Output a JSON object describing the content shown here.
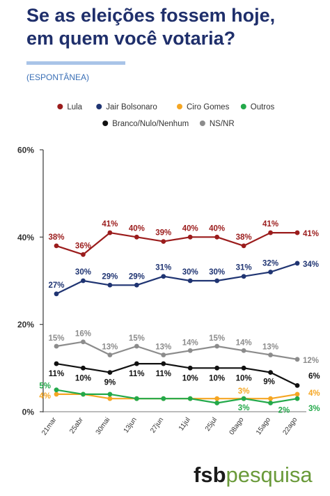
{
  "title": {
    "line1": "Se as eleições fossem hoje,",
    "line2": "em quem você votaria?"
  },
  "subtitle": "(ESPONTÂNEA)",
  "brand": {
    "part1": "fsb",
    "part2": "pesquisa"
  },
  "chart_data": {
    "type": "line",
    "title": "Se as eleições fossem hoje, em quem você votaria?",
    "subtitle": "(ESPONTÂNEA)",
    "xlabel": "",
    "ylabel": "",
    "ylim": [
      0,
      60
    ],
    "yticks": [
      "0%",
      "20%",
      "40%",
      "60%"
    ],
    "grid": false,
    "legend_position": "top",
    "x": [
      "21mar",
      "25abr",
      "30mai",
      "13jun",
      "27jun",
      "11jul",
      "25jul",
      "08ago",
      "15ago",
      "22ago"
    ],
    "series": [
      {
        "name": "Lula",
        "color": "#9b1c1c",
        "values": [
          38,
          36,
          41,
          40,
          39,
          40,
          40,
          38,
          41,
          41
        ],
        "labels": [
          "38%",
          "36%",
          "41%",
          "40%",
          "39%",
          "40%",
          "40%",
          "38%",
          "41%",
          "41%"
        ]
      },
      {
        "name": "Jair Bolsonaro",
        "color": "#1f3472",
        "values": [
          27,
          30,
          29,
          29,
          31,
          30,
          30,
          31,
          32,
          34
        ],
        "labels": [
          "27%",
          "30%",
          "29%",
          "29%",
          "31%",
          "30%",
          "30%",
          "31%",
          "32%",
          "34%"
        ]
      },
      {
        "name": "Ciro Gomes",
        "color": "#f5a623",
        "values": [
          4,
          4,
          3,
          3,
          3,
          3,
          3,
          3,
          3,
          4
        ],
        "labels": [
          "4%",
          "",
          "",
          "",
          "",
          "",
          "",
          "3%",
          "",
          "4%"
        ]
      },
      {
        "name": "Outros",
        "color": "#23a94a",
        "values": [
          5,
          4,
          4,
          3,
          3,
          3,
          2,
          3,
          2,
          3
        ],
        "labels": [
          "5%",
          "",
          "",
          "",
          "",
          "",
          "",
          "3%",
          "2%",
          "3%"
        ]
      },
      {
        "name": "Branco/Nulo/Nenhum",
        "color": "#111111",
        "values": [
          11,
          10,
          9,
          11,
          11,
          10,
          10,
          10,
          9,
          6
        ],
        "labels": [
          "11%",
          "10%",
          "9%",
          "11%",
          "11%",
          "10%",
          "10%",
          "10%",
          "9%",
          "6%"
        ]
      },
      {
        "name": "NS/NR",
        "color": "#8c8c8c",
        "values": [
          15,
          16,
          13,
          15,
          13,
          14,
          15,
          14,
          13,
          12
        ],
        "labels": [
          "15%",
          "16%",
          "13%",
          "15%",
          "13%",
          "14%",
          "15%",
          "14%",
          "13%",
          "12%"
        ]
      }
    ]
  }
}
